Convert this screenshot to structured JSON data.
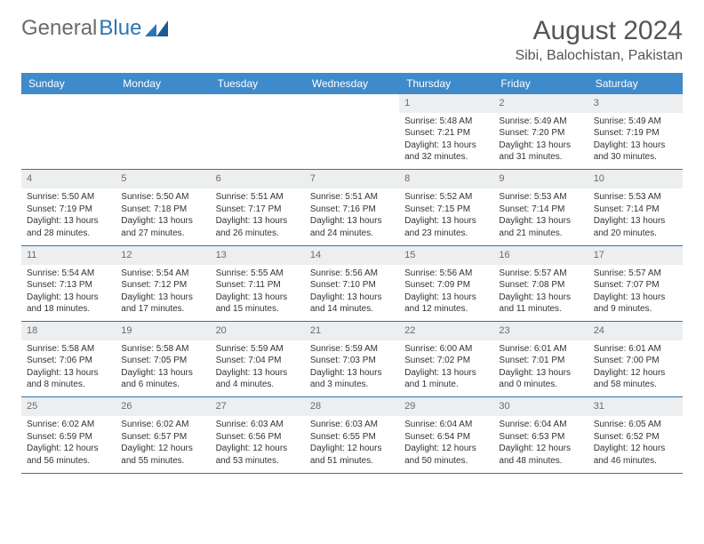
{
  "logo": {
    "part1": "General",
    "part2": "Blue"
  },
  "title": "August 2024",
  "location": "Sibi, Balochistan, Pakistan",
  "header_bg": "#3f8acb",
  "divider_color": "#2e74b5",
  "daynum_bg": "#eceef0",
  "weekdays": [
    "Sunday",
    "Monday",
    "Tuesday",
    "Wednesday",
    "Thursday",
    "Friday",
    "Saturday"
  ],
  "weeks": [
    {
      "nums": [
        "",
        "",
        "",
        "",
        "1",
        "2",
        "3"
      ],
      "cells": [
        "",
        "",
        "",
        "",
        "Sunrise: 5:48 AM\nSunset: 7:21 PM\nDaylight: 13 hours and 32 minutes.",
        "Sunrise: 5:49 AM\nSunset: 7:20 PM\nDaylight: 13 hours and 31 minutes.",
        "Sunrise: 5:49 AM\nSunset: 7:19 PM\nDaylight: 13 hours and 30 minutes."
      ]
    },
    {
      "nums": [
        "4",
        "5",
        "6",
        "7",
        "8",
        "9",
        "10"
      ],
      "cells": [
        "Sunrise: 5:50 AM\nSunset: 7:19 PM\nDaylight: 13 hours and 28 minutes.",
        "Sunrise: 5:50 AM\nSunset: 7:18 PM\nDaylight: 13 hours and 27 minutes.",
        "Sunrise: 5:51 AM\nSunset: 7:17 PM\nDaylight: 13 hours and 26 minutes.",
        "Sunrise: 5:51 AM\nSunset: 7:16 PM\nDaylight: 13 hours and 24 minutes.",
        "Sunrise: 5:52 AM\nSunset: 7:15 PM\nDaylight: 13 hours and 23 minutes.",
        "Sunrise: 5:53 AM\nSunset: 7:14 PM\nDaylight: 13 hours and 21 minutes.",
        "Sunrise: 5:53 AM\nSunset: 7:14 PM\nDaylight: 13 hours and 20 minutes."
      ]
    },
    {
      "nums": [
        "11",
        "12",
        "13",
        "14",
        "15",
        "16",
        "17"
      ],
      "cells": [
        "Sunrise: 5:54 AM\nSunset: 7:13 PM\nDaylight: 13 hours and 18 minutes.",
        "Sunrise: 5:54 AM\nSunset: 7:12 PM\nDaylight: 13 hours and 17 minutes.",
        "Sunrise: 5:55 AM\nSunset: 7:11 PM\nDaylight: 13 hours and 15 minutes.",
        "Sunrise: 5:56 AM\nSunset: 7:10 PM\nDaylight: 13 hours and 14 minutes.",
        "Sunrise: 5:56 AM\nSunset: 7:09 PM\nDaylight: 13 hours and 12 minutes.",
        "Sunrise: 5:57 AM\nSunset: 7:08 PM\nDaylight: 13 hours and 11 minutes.",
        "Sunrise: 5:57 AM\nSunset: 7:07 PM\nDaylight: 13 hours and 9 minutes."
      ]
    },
    {
      "nums": [
        "18",
        "19",
        "20",
        "21",
        "22",
        "23",
        "24"
      ],
      "cells": [
        "Sunrise: 5:58 AM\nSunset: 7:06 PM\nDaylight: 13 hours and 8 minutes.",
        "Sunrise: 5:58 AM\nSunset: 7:05 PM\nDaylight: 13 hours and 6 minutes.",
        "Sunrise: 5:59 AM\nSunset: 7:04 PM\nDaylight: 13 hours and 4 minutes.",
        "Sunrise: 5:59 AM\nSunset: 7:03 PM\nDaylight: 13 hours and 3 minutes.",
        "Sunrise: 6:00 AM\nSunset: 7:02 PM\nDaylight: 13 hours and 1 minute.",
        "Sunrise: 6:01 AM\nSunset: 7:01 PM\nDaylight: 13 hours and 0 minutes.",
        "Sunrise: 6:01 AM\nSunset: 7:00 PM\nDaylight: 12 hours and 58 minutes."
      ]
    },
    {
      "nums": [
        "25",
        "26",
        "27",
        "28",
        "29",
        "30",
        "31"
      ],
      "cells": [
        "Sunrise: 6:02 AM\nSunset: 6:59 PM\nDaylight: 12 hours and 56 minutes.",
        "Sunrise: 6:02 AM\nSunset: 6:57 PM\nDaylight: 12 hours and 55 minutes.",
        "Sunrise: 6:03 AM\nSunset: 6:56 PM\nDaylight: 12 hours and 53 minutes.",
        "Sunrise: 6:03 AM\nSunset: 6:55 PM\nDaylight: 12 hours and 51 minutes.",
        "Sunrise: 6:04 AM\nSunset: 6:54 PM\nDaylight: 12 hours and 50 minutes.",
        "Sunrise: 6:04 AM\nSunset: 6:53 PM\nDaylight: 12 hours and 48 minutes.",
        "Sunrise: 6:05 AM\nSunset: 6:52 PM\nDaylight: 12 hours and 46 minutes."
      ]
    }
  ]
}
